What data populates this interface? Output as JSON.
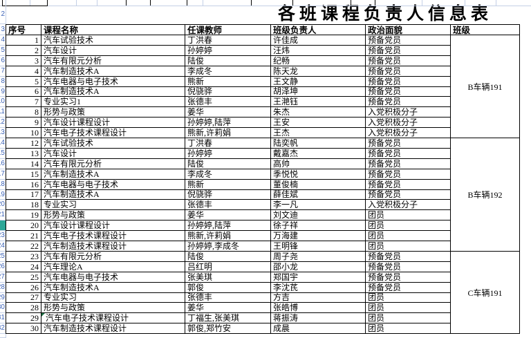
{
  "title": "各班课程负责人信息表",
  "columns": {
    "no": "序号",
    "course": "课程名称",
    "teacher": "任课教师",
    "leader": "班级负责人",
    "political": "政治面貌",
    "class": "班级"
  },
  "rows": [
    {
      "no": "1",
      "course": "汽车试验技术",
      "teacher": "丁洪春",
      "leader": "许佳成",
      "political": "预备党员"
    },
    {
      "no": "2",
      "course": "汽车设计",
      "teacher": "孙婷婷",
      "leader": "汪炜",
      "political": "预备党员"
    },
    {
      "no": "3",
      "course": "汽车有限元分析",
      "teacher": "陆俊",
      "leader": "纪畅",
      "political": "预备党员"
    },
    {
      "no": "4",
      "course": "汽车制造技术A",
      "teacher": "李成冬",
      "leader": "陈天龙",
      "political": "预备党员"
    },
    {
      "no": "5",
      "course": "汽车电器与电子技术",
      "teacher": "熊新",
      "leader": "王文静",
      "political": "预备党员"
    },
    {
      "no": "6",
      "course": "汽车制造技术A",
      "teacher": "倪骁骅",
      "leader": "胡泽坤",
      "political": "预备党员"
    },
    {
      "no": "7",
      "course": "专业实习1",
      "teacher": "张德丰",
      "leader": "王滟钰",
      "political": "预备党员"
    },
    {
      "no": "8",
      "course": "形势与政策",
      "teacher": "姜华",
      "leader": "朱杰",
      "political": "入党积极分子"
    },
    {
      "no": "9",
      "course": "汽车设计课程设计",
      "teacher": "孙婷婷,陆萍",
      "leader": "王安",
      "political": "入党积极分子"
    },
    {
      "no": "10",
      "course": "汽车电子技术课程设计",
      "teacher": "熊新,许莉娟",
      "leader": "王杰",
      "political": "入党积极分子"
    },
    {
      "no": "12",
      "course": "汽车试验技术",
      "teacher": "丁洪春",
      "leader": "陆奕帆",
      "political": "预备党员"
    },
    {
      "no": "13",
      "course": "汽车设计",
      "teacher": "孙婷婷",
      "leader": "戴嘉杰",
      "political": "预备党员"
    },
    {
      "no": "14",
      "course": "汽车有限元分析",
      "teacher": "陆俊",
      "leader": "高帅",
      "political": "预备党员"
    },
    {
      "no": "15",
      "course": "汽车制造技术A",
      "teacher": "李成冬",
      "leader": "季悦悦",
      "political": "预备党员"
    },
    {
      "no": "16",
      "course": "汽车电器与电子技术",
      "teacher": "熊新",
      "leader": "董俊楠",
      "political": "预备党员"
    },
    {
      "no": "17",
      "course": "汽车制造技术A",
      "teacher": "倪骁骅",
      "leader": "薛佳斌",
      "political": "预备党员"
    },
    {
      "no": "18",
      "course": "专业实习",
      "teacher": "张德丰",
      "leader": "李一凡",
      "political": "入党积极分子"
    },
    {
      "no": "19",
      "course": "形势与政策",
      "teacher": "姜华",
      "leader": "刘文迪",
      "political": "团员"
    },
    {
      "no": "20",
      "course": "汽车设计课程设计",
      "teacher": "孙婷婷,陆萍",
      "leader": "徐子祥",
      "political": "团员"
    },
    {
      "no": "21",
      "course": "汽车电子技术课程设计",
      "teacher": "熊新,许莉娟",
      "leader": "万海建",
      "political": "团员"
    },
    {
      "no": "22",
      "course": "汽车制造技术课程设计",
      "teacher": "孙婷婷,李成冬",
      "leader": "王明锋",
      "political": "团员"
    },
    {
      "no": "23",
      "course": "汽车有限元分析",
      "teacher": "陆俊",
      "leader": "周子尧",
      "political": "预备党员"
    },
    {
      "no": "24",
      "course": "汽车理论A",
      "teacher": "吕红明",
      "leader": "邵小龙",
      "political": "预备党员"
    },
    {
      "no": "25",
      "course": "汽车电器与电子技术",
      "teacher": "张美琪",
      "leader": "郑国宇",
      "political": "预备党员"
    },
    {
      "no": "26",
      "course": "汽车制造技术A",
      "teacher": "郭俊",
      "leader": "李沈芪",
      "political": "预备党员"
    },
    {
      "no": "27",
      "course": "专业实习",
      "teacher": "张德丰",
      "leader": "方吉",
      "political": "团员"
    },
    {
      "no": "28",
      "course": "形势与政策",
      "teacher": "姜华",
      "leader": "张皓博",
      "political": "团员"
    },
    {
      "no": "29",
      "course": " 汽车电子技术课程设计",
      "teacher": "丁福生,张美琪",
      "leader": "蒋振涛",
      "political": "团员"
    },
    {
      "no": "30",
      "course": "汽车制造技术课程设计",
      "teacher": "郭俊,郑竹安",
      "leader": "成晨",
      "political": "团员"
    }
  ],
  "class_groups": [
    {
      "label": "B车辆191",
      "start": 0,
      "count": 10
    },
    {
      "label": "B车辆192",
      "start": 10,
      "count": 11
    },
    {
      "label": "C车辆191",
      "start": 21,
      "count": 8
    }
  ],
  "selection": {
    "highlighted_row_no": "20",
    "color": "#2ca797"
  },
  "flags": {
    "error_indicator_row_no": "29",
    "color": "#1e7145"
  },
  "colors": {
    "border": "#000000",
    "grid_light": "#c3cfe6",
    "row_header_text": "#3c63b8",
    "background": "#ffffff"
  }
}
